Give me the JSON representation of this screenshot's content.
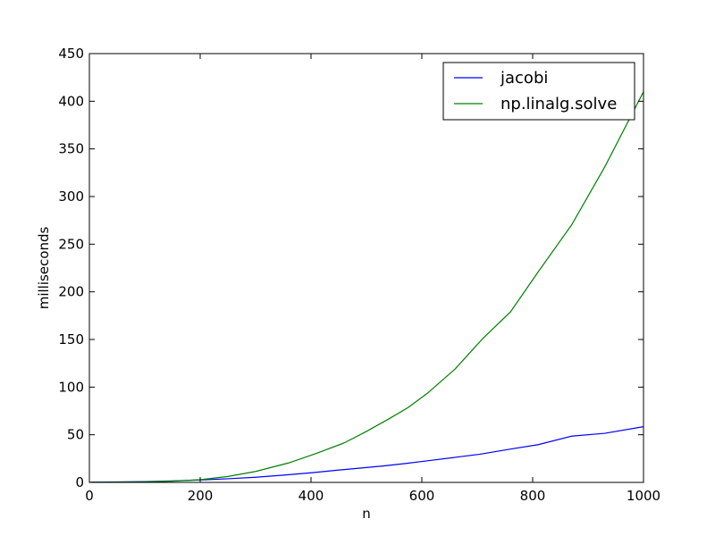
{
  "chart_data": {
    "type": "line",
    "title": "",
    "xlabel": "n",
    "ylabel": "milliseconds",
    "xlim": [
      0,
      1000
    ],
    "ylim": [
      0,
      450
    ],
    "xticks": [
      0,
      200,
      400,
      600,
      800,
      1000
    ],
    "yticks": [
      0,
      50,
      100,
      150,
      200,
      250,
      300,
      350,
      400,
      450
    ],
    "grid": false,
    "legend_position": "top-right",
    "series": [
      {
        "name": "jacobi",
        "color": "#0000ff",
        "x": [
          2,
          50,
          100,
          150,
          200,
          250,
          300,
          350,
          400,
          460,
          530,
          570,
          610,
          660,
          705,
          760,
          810,
          870,
          930,
          1000
        ],
        "y": [
          0.3,
          0.5,
          0.9,
          1.6,
          2.6,
          3.8,
          5.4,
          7.6,
          10.1,
          13.5,
          17.2,
          19.8,
          22.7,
          26.3,
          29.6,
          35.0,
          39.6,
          48.5,
          51.5,
          58.5
        ]
      },
      {
        "name": "np.linalg.solve",
        "color": "#008000",
        "x": [
          2,
          50,
          100,
          150,
          200,
          250,
          300,
          360,
          410,
          460,
          500,
          540,
          575,
          610,
          660,
          710,
          760,
          810,
          870,
          930,
          1000
        ],
        "y": [
          0.2,
          0.3,
          0.6,
          1.3,
          2.8,
          6.2,
          11.5,
          20.5,
          30.5,
          41.5,
          53.5,
          66.5,
          78.5,
          93.5,
          119.0,
          151.0,
          179.0,
          221.0,
          270.0,
          331.0,
          410.0
        ]
      }
    ]
  }
}
